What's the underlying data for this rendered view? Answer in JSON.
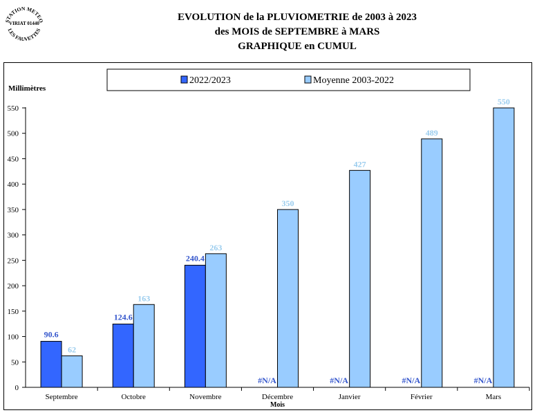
{
  "stamp": {
    "top_text": "STATION METEO",
    "middle_text": "VIRIAT 01440",
    "bottom_text": "LES FAUVETTES"
  },
  "titles": [
    "EVOLUTION de la PLUVIOMETRIE de 2003 à 2023",
    "des MOIS de SEPTEMBRE à MARS",
    "GRAPHIQUE en CUMUL"
  ],
  "colors": {
    "series_current": "#3366FF",
    "series_current_label": "#3355CC",
    "series_average": "#99CCFF",
    "series_average_label": "#99CCEE"
  },
  "chart_data": {
    "type": "bar",
    "title": "EVOLUTION de la PLUVIOMETRIE de 2003 à 2023 des MOIS de SEPTEMBRE à MARS GRAPHIQUE en CUMUL",
    "ylabel": "Millimètres",
    "xlabel": "Mois",
    "ylim": [
      0,
      550
    ],
    "yticks": [
      0,
      50,
      100,
      150,
      200,
      250,
      300,
      350,
      400,
      450,
      500,
      550
    ],
    "categories": [
      "Septembre",
      "Octobre",
      "Novembre",
      "Décembre",
      "Janvier",
      "Février",
      "Mars"
    ],
    "legend_position": "top",
    "grid": false,
    "series": [
      {
        "name": "2022/2023",
        "values": [
          90.6,
          124.6,
          240.4,
          null,
          null,
          null,
          null
        ],
        "labels": [
          "90.6",
          "124.6",
          "240.4",
          "#N/A",
          "#N/A",
          "#N/A",
          "#N/A"
        ]
      },
      {
        "name": "Moyenne 2003-2022",
        "values": [
          62,
          163,
          263,
          350,
          427,
          489,
          550
        ],
        "labels": [
          "62",
          "163",
          "263",
          "350",
          "427",
          "489",
          "550"
        ]
      }
    ]
  }
}
